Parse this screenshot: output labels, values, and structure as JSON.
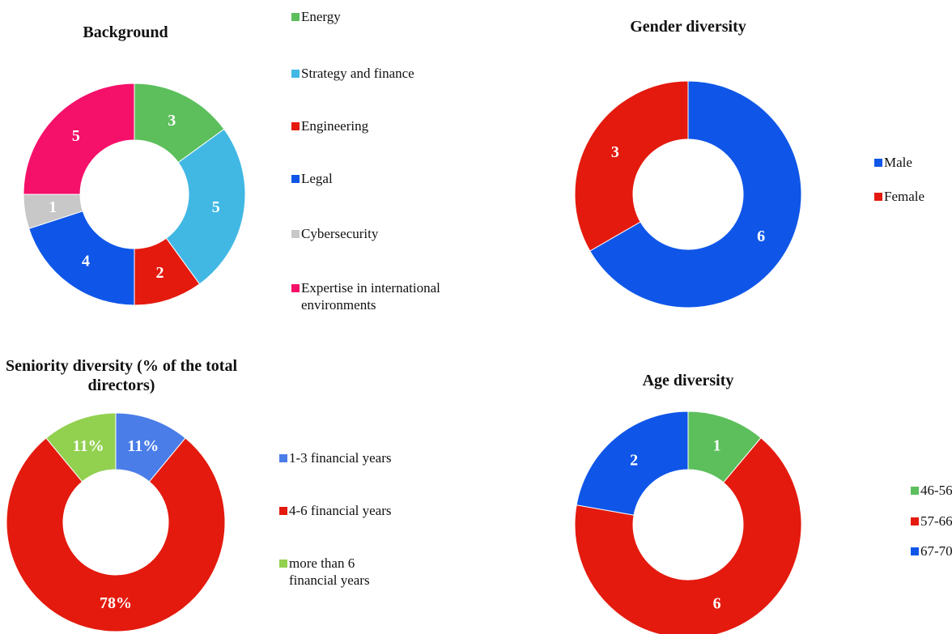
{
  "chart_data": [
    {
      "type": "pie",
      "title": "Background",
      "categories": [
        "Energy",
        "Strategy and finance",
        "Engineering",
        "Legal",
        "Cybersecurity",
        "Expertise in international environments"
      ],
      "values": [
        3,
        5,
        2,
        4,
        1,
        5
      ],
      "colors": [
        "#5cbf5c",
        "#41b8e4",
        "#e41a0e",
        "#0f56e8",
        "#c8c8c8",
        "#f5106a"
      ]
    },
    {
      "type": "pie",
      "title": "Gender diversity",
      "categories": [
        "Male",
        "Female"
      ],
      "values": [
        6,
        3
      ],
      "colors": [
        "#0f56e8",
        "#e41a0e"
      ]
    },
    {
      "type": "pie",
      "title": "Seniority diversity (% of the total directors)",
      "categories": [
        "1-3 financial years",
        "4-6 financial years",
        "more than 6 financial years"
      ],
      "values": [
        11,
        78,
        11
      ],
      "value_labels": [
        "11%",
        "78%",
        "11%"
      ],
      "colors": [
        "#4a7de8",
        "#e41a0e",
        "#92d050"
      ]
    },
    {
      "type": "pie",
      "title": "Age diversity",
      "categories": [
        "46-56",
        "57-66",
        "67-70"
      ],
      "values": [
        1,
        6,
        2
      ],
      "colors": [
        "#5cbf5c",
        "#e41a0e",
        "#0f56e8"
      ]
    }
  ]
}
